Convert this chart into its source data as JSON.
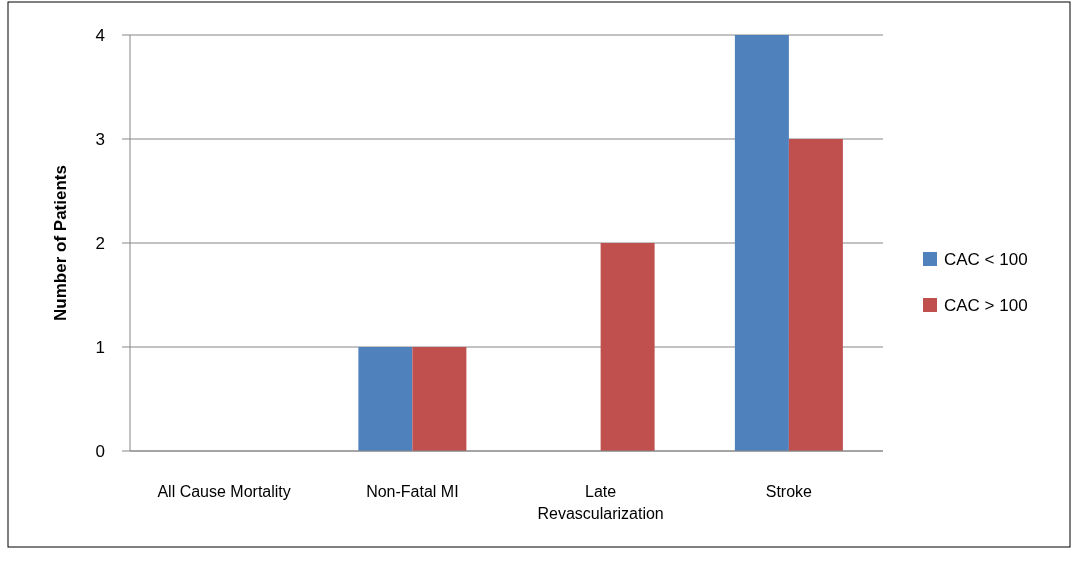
{
  "chart_data": {
    "type": "bar",
    "ylabel": "Number of Patients",
    "categories": [
      "All Cause Mortality",
      "Non-Fatal MI",
      "Late Revascularization",
      "Stroke"
    ],
    "series": [
      {
        "name": "CAC < 100",
        "color": "#4f81bd",
        "values": [
          0,
          1,
          0,
          4
        ]
      },
      {
        "name": "CAC > 100",
        "color": "#c0504d",
        "values": [
          0,
          1,
          2,
          3
        ]
      }
    ],
    "ylim": [
      0,
      4
    ],
    "yticks": [
      0,
      1,
      2,
      3,
      4
    ],
    "grid": "y",
    "legend": "right"
  }
}
